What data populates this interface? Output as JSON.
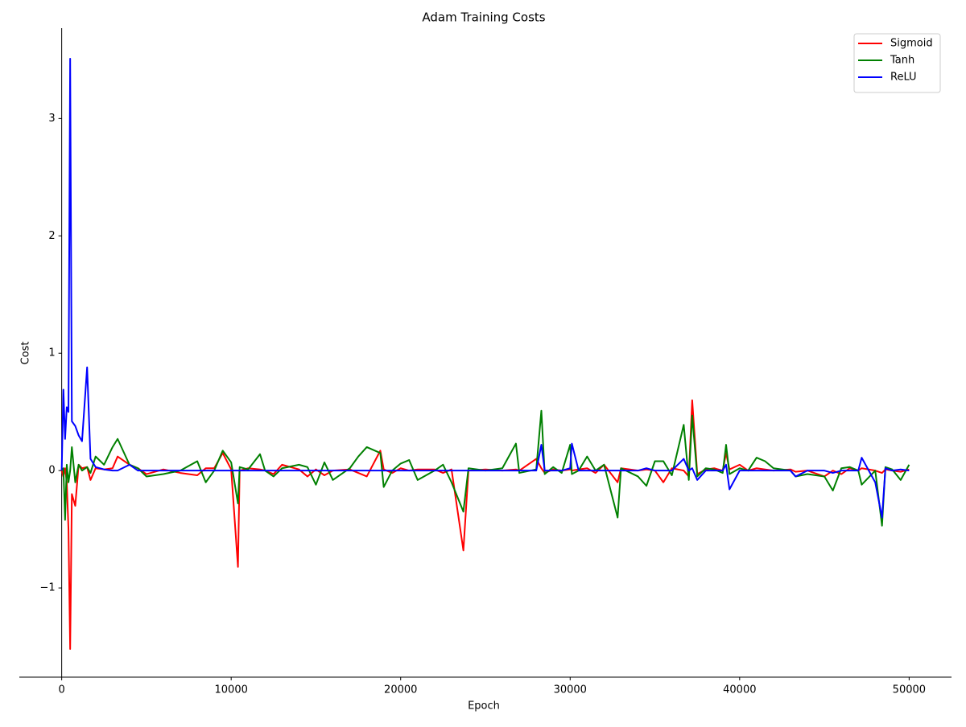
{
  "chart_data": {
    "type": "line",
    "title": "Adam Training Costs",
    "xlabel": "Epoch",
    "ylabel": "Cost",
    "x": [
      0,
      100,
      200,
      300,
      400,
      500,
      600,
      800,
      1000,
      1200,
      1500,
      1700,
      2000,
      2500,
      3000,
      3300,
      4000,
      4500,
      5000,
      6000,
      7000,
      8000,
      8500,
      9000,
      9500,
      10000,
      10400,
      10500,
      11000,
      11700,
      12000,
      12500,
      13000,
      14000,
      14500,
      15000,
      15500,
      16000,
      17000,
      17500,
      18000,
      18800,
      19000,
      19500,
      20000,
      20500,
      21000,
      22000,
      22500,
      23000,
      23700,
      24000,
      25000,
      26000,
      26800,
      27000,
      28000,
      28300,
      28500,
      29000,
      29500,
      30000,
      30100,
      30500,
      31000,
      31500,
      32000,
      32800,
      33000,
      34000,
      34500,
      35000,
      35500,
      36000,
      36700,
      37000,
      37200,
      37500,
      38000,
      38500,
      39000,
      39200,
      39400,
      40000,
      40500,
      41000,
      41500,
      42000,
      43000,
      43300,
      44000,
      45000,
      45500,
      46000,
      46500,
      47000,
      47200,
      48000,
      48400,
      48600,
      49000,
      49500,
      50000
    ],
    "series": [
      {
        "name": "Sigmoid",
        "color": "#ff0000",
        "values": [
          0,
          -0.05,
          0.02,
          -0.1,
          -0.5,
          -1.52,
          -0.2,
          -0.3,
          0.05,
          0.02,
          0.03,
          -0.08,
          0.02,
          0.01,
          0.02,
          0.12,
          0.05,
          0.02,
          -0.03,
          0.01,
          -0.02,
          -0.04,
          0.02,
          0.02,
          0.15,
          0.01,
          -0.82,
          0.0,
          0.02,
          0.01,
          0.0,
          -0.03,
          0.05,
          0.01,
          -0.05,
          0.01,
          -0.04,
          0.0,
          0.01,
          -0.02,
          -0.05,
          0.17,
          0.01,
          -0.02,
          0.02,
          0.0,
          0.01,
          0.01,
          -0.02,
          0.01,
          -0.68,
          0.0,
          0.01,
          0.0,
          0.01,
          0.0,
          0.1,
          0.02,
          -0.02,
          0.01,
          0.0,
          0.01,
          0.0,
          0.01,
          0.02,
          -0.02,
          0.05,
          -0.1,
          0.02,
          0.0,
          0.01,
          0.0,
          -0.1,
          0.02,
          0.0,
          -0.05,
          0.6,
          -0.03,
          0.01,
          0.02,
          0.0,
          0.15,
          0.01,
          0.05,
          0.0,
          0.02,
          0.01,
          0.0,
          0.01,
          -0.01,
          0.0,
          -0.05,
          0.0,
          -0.03,
          0.02,
          0.0,
          0.02,
          0.0,
          -0.02,
          0.01,
          0.0,
          -0.01,
          0.01
        ]
      },
      {
        "name": "Tanh",
        "color": "#008000",
        "values": [
          0,
          0.02,
          -0.42,
          0.05,
          -0.1,
          0.0,
          0.2,
          -0.1,
          0.05,
          0.0,
          0.03,
          -0.02,
          0.12,
          0.05,
          0.2,
          0.27,
          0.05,
          0.02,
          -0.05,
          -0.03,
          0.0,
          0.08,
          -0.1,
          0.0,
          0.17,
          0.07,
          -0.28,
          0.03,
          0.01,
          0.14,
          0.0,
          -0.05,
          0.02,
          0.05,
          0.03,
          -0.12,
          0.07,
          -0.08,
          0.02,
          0.12,
          0.2,
          0.15,
          -0.14,
          0.0,
          0.06,
          0.09,
          -0.08,
          0.0,
          0.05,
          -0.1,
          -0.35,
          0.02,
          0.0,
          0.02,
          0.23,
          -0.02,
          0.01,
          0.51,
          -0.03,
          0.03,
          -0.02,
          0.22,
          -0.03,
          0.0,
          0.12,
          0.0,
          0.05,
          -0.4,
          0.02,
          -0.05,
          -0.13,
          0.08,
          0.08,
          -0.04,
          0.39,
          -0.08,
          0.47,
          -0.05,
          0.02,
          0.01,
          -0.02,
          0.22,
          -0.03,
          0.02,
          0.0,
          0.11,
          0.08,
          0.02,
          0.0,
          -0.05,
          -0.03,
          -0.05,
          -0.17,
          0.02,
          0.03,
          0.0,
          -0.12,
          0.0,
          -0.47,
          0.03,
          0.01,
          -0.08,
          0.05
        ]
      },
      {
        "name": "ReLU",
        "color": "#0000ff",
        "values": [
          0,
          0.69,
          0.27,
          0.54,
          0.5,
          3.51,
          0.42,
          0.38,
          0.3,
          0.25,
          0.88,
          0.1,
          0.03,
          0.01,
          0.0,
          0.0,
          0.05,
          0.0,
          0.0,
          0.0,
          0,
          0,
          0,
          0,
          0,
          0,
          0,
          0,
          0,
          0,
          0,
          0,
          0,
          0,
          0,
          0,
          0,
          0,
          0,
          0,
          0,
          0,
          0,
          0,
          0,
          0,
          0,
          0,
          0,
          0,
          0,
          0,
          0,
          0,
          0,
          0,
          0,
          0.22,
          0,
          0,
          0,
          0.02,
          0.23,
          0,
          0,
          0,
          0,
          0,
          0,
          0,
          0.02,
          0,
          0,
          0,
          0.1,
          0,
          0.02,
          -0.08,
          0,
          0,
          0,
          0.05,
          -0.16,
          0,
          0,
          0,
          0,
          0,
          0,
          -0.05,
          0,
          0,
          -0.02,
          0,
          0,
          0,
          0.11,
          -0.1,
          -0.4,
          0.02,
          0,
          0.01,
          0
        ]
      }
    ],
    "xlim": [
      -2500,
      52500
    ],
    "ylim": [
      -1.76,
      3.77
    ],
    "xticks": [
      0,
      10000,
      20000,
      30000,
      40000,
      50000
    ],
    "yticks": [
      {
        "value": -1,
        "label": "−1"
      },
      0,
      1,
      2,
      3
    ],
    "legend": "upper right"
  }
}
